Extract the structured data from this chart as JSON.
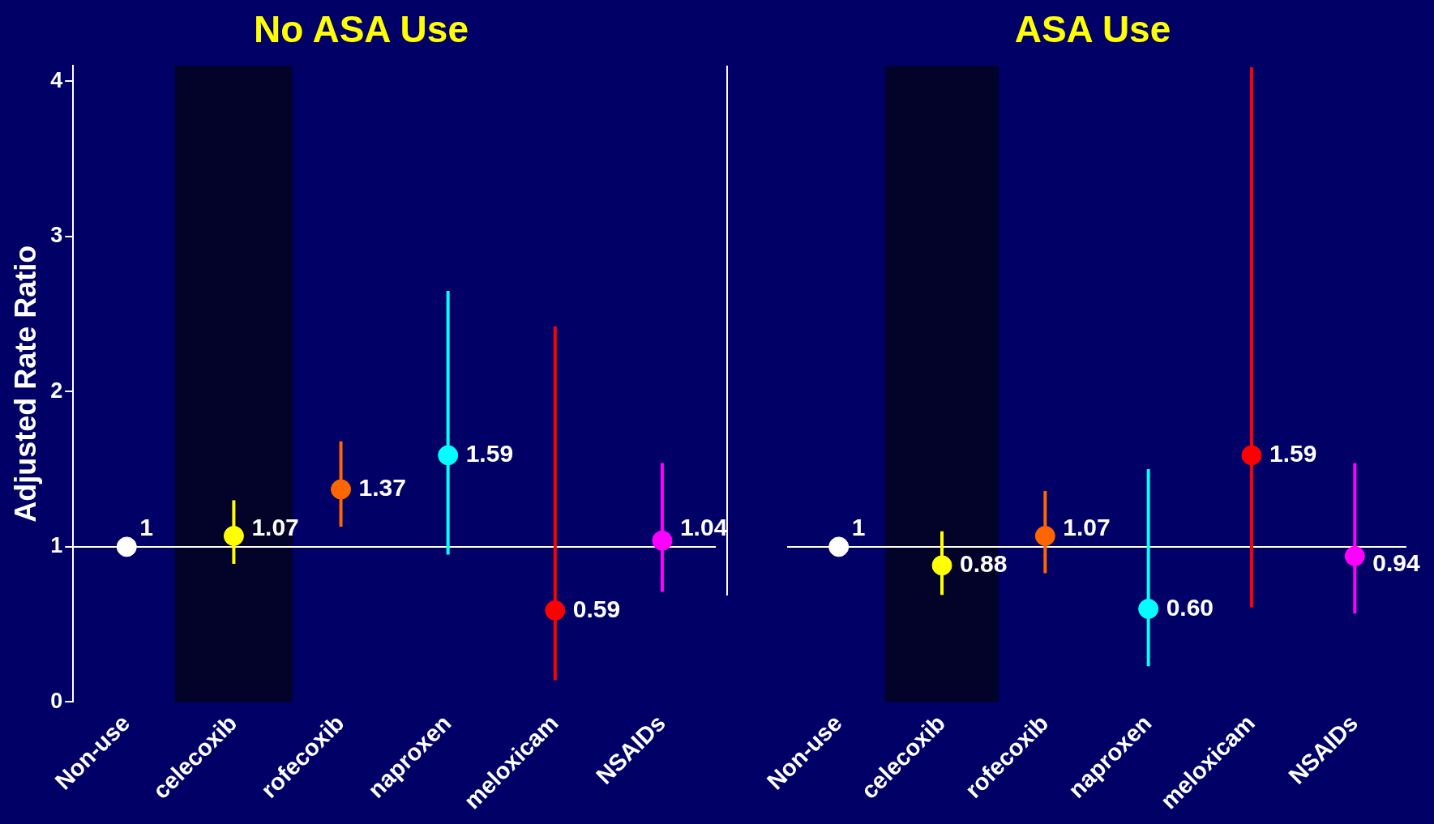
{
  "chart_data": [
    {
      "type": "scatter",
      "title": "No ASA Use",
      "ylabel": "Adjusted Rate Ratio",
      "categories": [
        "Non-use",
        "celecoxib",
        "rofecoxib",
        "naproxen",
        "meloxicam",
        "NSAIDs"
      ],
      "values": [
        1,
        1.07,
        1.37,
        1.59,
        0.59,
        1.04
      ],
      "colors": [
        "#ffffff",
        "#ffff00",
        "#ff6600",
        "#00ffff",
        "#ff0000",
        "#ff00ff"
      ],
      "errors": [
        null,
        [
          0.89,
          1.3
        ],
        [
          1.13,
          1.68
        ],
        [
          0.95,
          2.65
        ],
        [
          0.14,
          2.42
        ],
        [
          0.71,
          1.54
        ]
      ],
      "value_labels": [
        "1",
        "1.07",
        "1.37",
        "1.59",
        "0.59",
        "1.04"
      ],
      "ylim": [
        0,
        4.1
      ],
      "yticks": [
        0,
        1,
        2,
        3,
        4
      ],
      "grid": false,
      "legend": false,
      "marker": "circle",
      "ref_lines": [
        {
          "axis": "y",
          "value": 1,
          "color": "#ffffff"
        }
      ],
      "bands": [
        {
          "axis": "x",
          "from": "celecoxib",
          "to": "celecoxib",
          "color": "#03032a"
        }
      ]
    },
    {
      "type": "scatter",
      "title": "ASA Use",
      "categories": [
        "Non-use",
        "celecoxib",
        "rofecoxib",
        "naproxen",
        "meloxicam",
        "NSAIDs"
      ],
      "values": [
        1,
        0.88,
        1.07,
        0.6,
        1.59,
        0.94
      ],
      "colors": [
        "#ffffff",
        "#ffff00",
        "#ff6600",
        "#00ffff",
        "#ff0000",
        "#ff00ff"
      ],
      "errors": [
        null,
        [
          0.69,
          1.1
        ],
        [
          0.83,
          1.36
        ],
        [
          0.23,
          1.5
        ],
        [
          0.61,
          4.09
        ],
        [
          0.57,
          1.54
        ]
      ],
      "value_labels": [
        "1",
        "0.88",
        "1.07",
        "0.60",
        "1.59",
        "0.94"
      ],
      "ylim": [
        0,
        4.1
      ],
      "yticks": [
        0,
        1,
        2,
        3,
        4
      ],
      "tick_labels": "x",
      "grid": false,
      "legend": false,
      "marker": "circle",
      "ref_lines": [
        {
          "axis": "y",
          "value": 1,
          "color": "#ffffff"
        }
      ],
      "bands": [
        {
          "axis": "x",
          "from": "celecoxib",
          "to": "celecoxib",
          "color": "#03032a"
        }
      ]
    }
  ]
}
